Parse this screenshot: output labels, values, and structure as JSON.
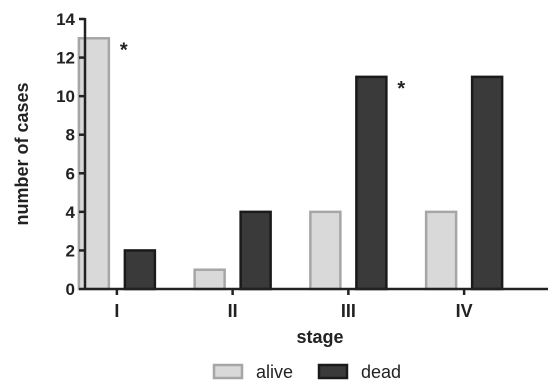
{
  "chart_data": {
    "type": "bar",
    "title": "",
    "xlabel": "stage",
    "ylabel": "number of cases",
    "categories": [
      "I",
      "II",
      "III",
      "IV"
    ],
    "series": [
      {
        "name": "alive",
        "values": [
          13,
          1,
          4,
          4
        ],
        "fill": "#d9d9d9",
        "stroke": "#a6a6a6"
      },
      {
        "name": "dead",
        "values": [
          2,
          4,
          11,
          11
        ],
        "fill": "#3a3a3a",
        "stroke": "#1a1a1a"
      }
    ],
    "ylim": [
      0,
      14
    ],
    "yticks": [
      "0",
      "2",
      "4",
      "6",
      "8",
      "10",
      "12",
      "14"
    ],
    "grid": false,
    "legend_position": "bottom",
    "annotations": [
      {
        "text": "*",
        "category": "I",
        "series": "alive"
      },
      {
        "text": "*",
        "category": "III",
        "series": "dead"
      }
    ]
  }
}
